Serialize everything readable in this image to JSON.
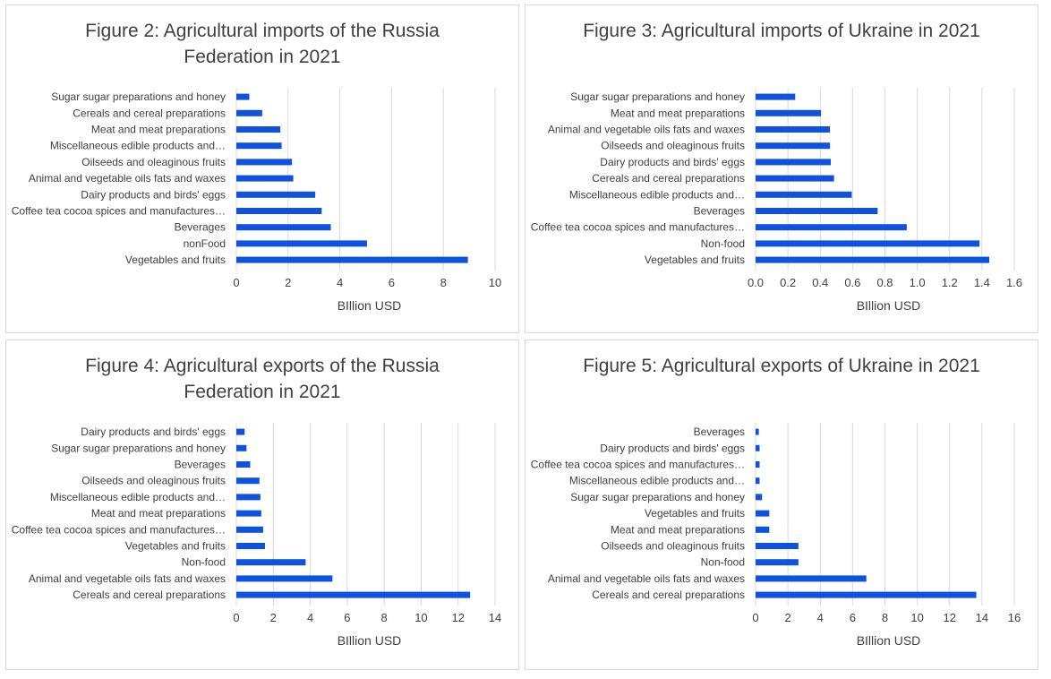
{
  "chart_data": [
    {
      "type": "bar",
      "orientation": "horizontal",
      "title": "Figure 2: Agricultural imports of the Russia Federation in 2021",
      "xlabel": "BIllion USD",
      "xlim": [
        0,
        10
      ],
      "xticks": [
        0,
        2,
        4,
        6,
        8,
        10
      ],
      "grid": true,
      "bar_color": "#0f52e0",
      "categories": [
        "Sugar sugar preparations and honey",
        "Cereals and cereal preparations",
        "Meat and meat preparations",
        "Miscellaneous edible products and…",
        "Oilseeds and oleaginous fruits",
        "Animal and vegetable oils fats and waxes",
        "Dairy products and birds' eggs",
        "Coffee tea cocoa spices and manufactures…",
        "Beverages",
        "nonFood",
        "Vegetables and fruits"
      ],
      "values": [
        0.5,
        1.0,
        1.7,
        1.75,
        2.15,
        2.2,
        3.05,
        3.3,
        3.65,
        5.05,
        8.95
      ]
    },
    {
      "type": "bar",
      "orientation": "horizontal",
      "title": "Figure 3: Agricultural imports of Ukraine in 2021",
      "xlabel": "BIllion USD",
      "xlim": [
        0,
        1.6
      ],
      "xticks": [
        "0.0",
        "0.2",
        "0.4",
        "0.6",
        "0.8",
        "1.0",
        "1.2",
        "1.4",
        "1.6"
      ],
      "grid": true,
      "bar_color": "#0f52e0",
      "categories": [
        "Sugar sugar preparations and honey",
        "Meat and meat preparations",
        "Animal and vegetable oils fats and waxes",
        "Oilseeds and oleaginous fruits",
        "Dairy products and birds' eggs",
        "Cereals and cereal preparations",
        "Miscellaneous edible products and…",
        "Beverages",
        "Coffee tea cocoa spices and manufactures…",
        "Non-food",
        "Vegetables and fruits"
      ],
      "values": [
        0.245,
        0.405,
        0.46,
        0.46,
        0.465,
        0.485,
        0.595,
        0.755,
        0.935,
        1.385,
        1.445
      ]
    },
    {
      "type": "bar",
      "orientation": "horizontal",
      "title": "Figure 4: Agricultural exports of the Russia Federation in 2021",
      "xlabel": "BIllion USD",
      "xlim": [
        0,
        14
      ],
      "xticks": [
        0,
        2,
        4,
        6,
        8,
        10,
        12,
        14
      ],
      "grid": true,
      "bar_color": "#0f52e0",
      "categories": [
        "Dairy products and birds' eggs",
        "Sugar sugar preparations and honey",
        "Beverages",
        "Oilseeds and oleaginous fruits",
        "Miscellaneous edible products and…",
        "Meat and meat preparations",
        "Coffee tea cocoa spices and manufactures…",
        "Vegetables and fruits",
        "Non-food",
        "Animal and vegetable oils fats and waxes",
        "Cereals and cereal preparations"
      ],
      "values": [
        0.45,
        0.55,
        0.75,
        1.25,
        1.3,
        1.35,
        1.45,
        1.55,
        3.75,
        5.2,
        12.65
      ]
    },
    {
      "type": "bar",
      "orientation": "horizontal",
      "title": "Figure 5: Agricultural exports of Ukraine in 2021",
      "xlabel": "BIllion USD",
      "xlim": [
        0,
        16
      ],
      "xticks": [
        0,
        2,
        4,
        6,
        8,
        10,
        12,
        14,
        16
      ],
      "grid": true,
      "bar_color": "#0f52e0",
      "categories": [
        "Beverages",
        "Dairy products and birds' eggs",
        "Coffee tea cocoa spices and manufactures…",
        "Miscellaneous edible products and…",
        "Sugar sugar preparations and honey",
        "Vegetables and fruits",
        "Meat and meat preparations",
        "Oilseeds and oleaginous fruits",
        "Non-food",
        "Animal and vegetable oils fats and waxes",
        "Cereals and cereal preparations"
      ],
      "values": [
        0.2,
        0.25,
        0.25,
        0.25,
        0.4,
        0.85,
        0.85,
        2.65,
        2.65,
        6.85,
        13.65
      ]
    }
  ]
}
